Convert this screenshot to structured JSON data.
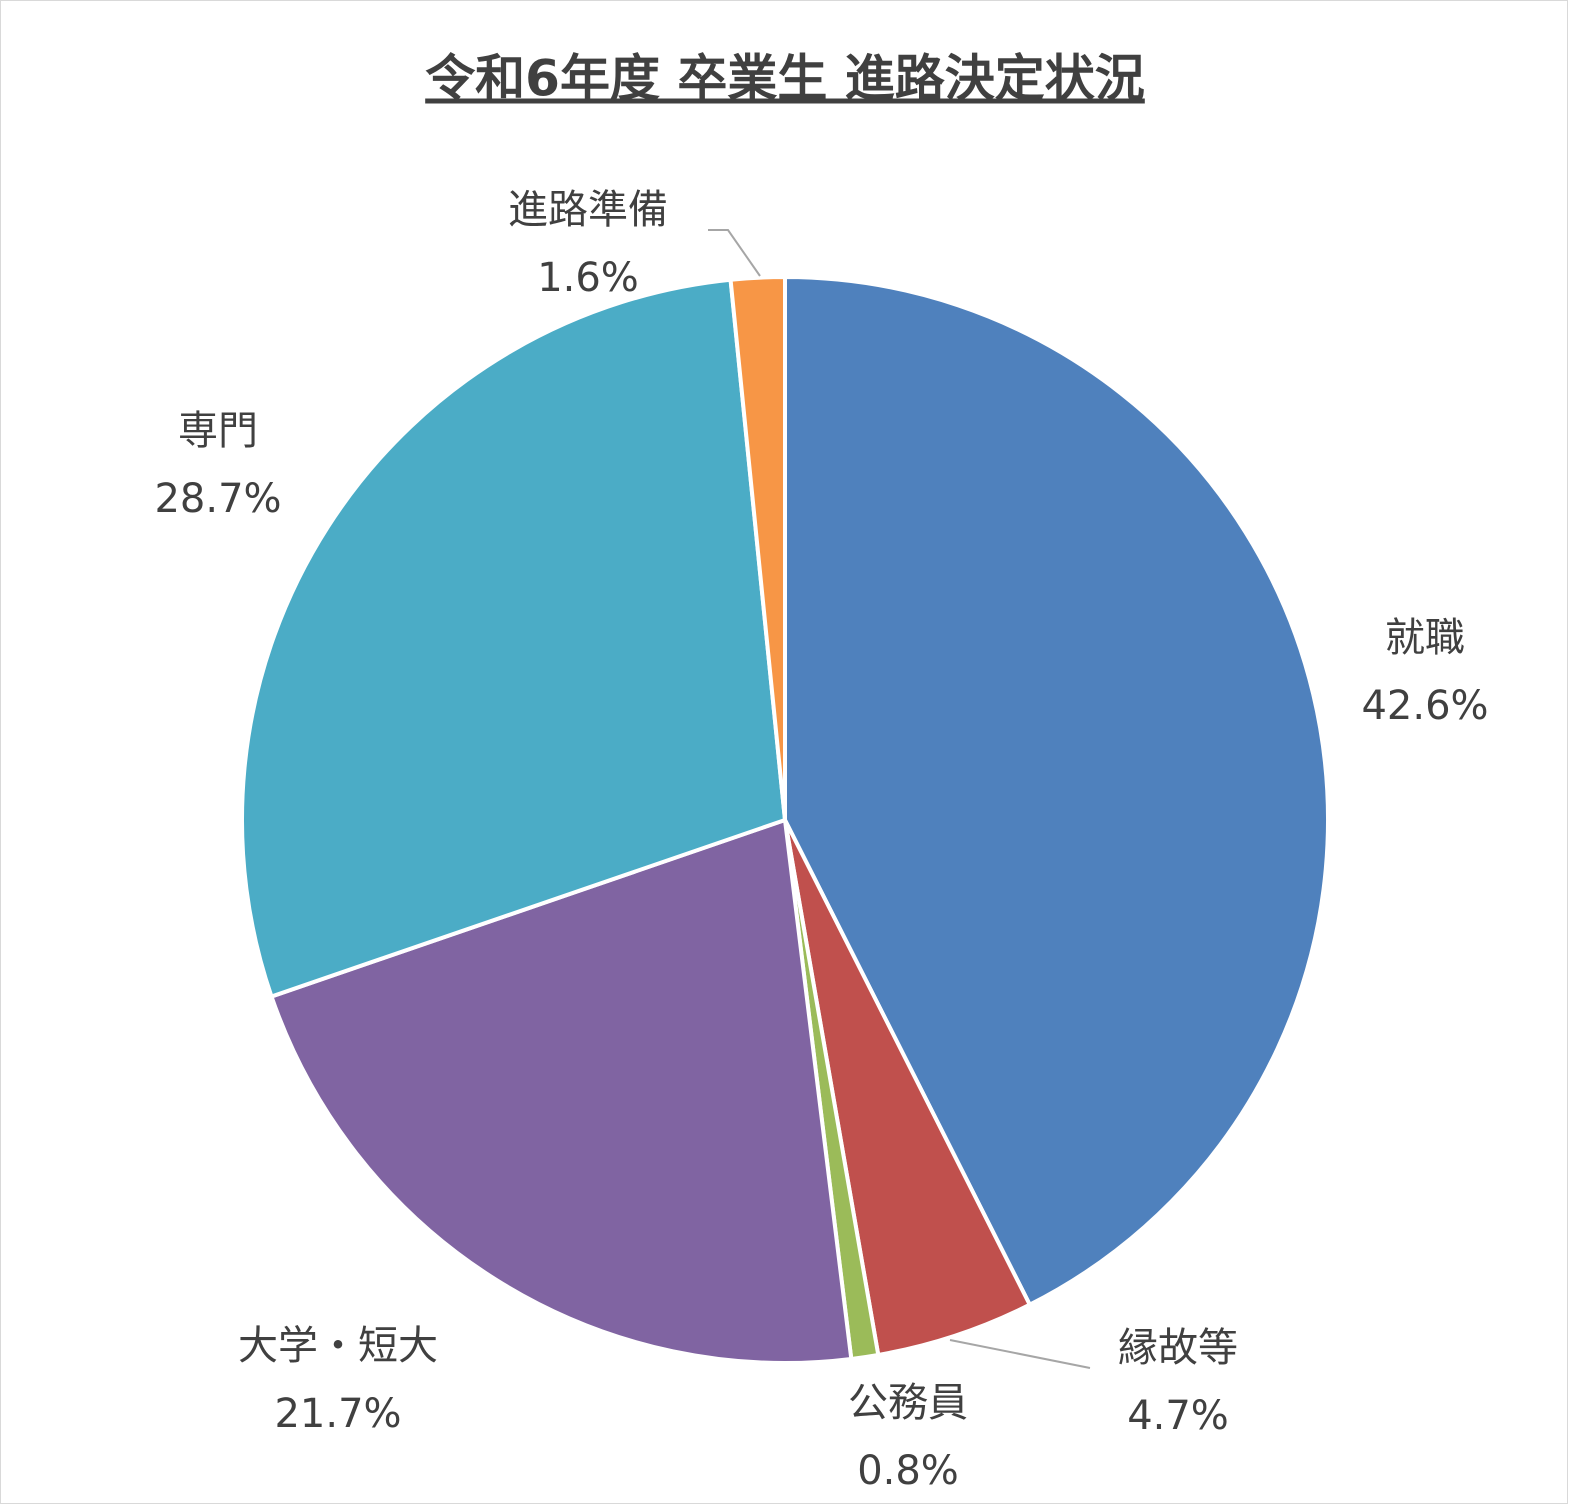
{
  "chart_data": {
    "type": "pie",
    "title": "令和6年度 卒業生 進路決定状況",
    "categories": [
      "就職",
      "縁故等",
      "公務員",
      "大学・短大",
      "専門",
      "進路準備"
    ],
    "values": [
      42.6,
      4.7,
      0.8,
      21.7,
      28.7,
      1.6
    ],
    "value_labels": [
      "42.6%",
      "4.7%",
      "0.8%",
      "21.7%",
      "28.7%",
      "1.6%"
    ],
    "colors": [
      "#4f81bd",
      "#c0504d",
      "#9bbb59",
      "#8064a2",
      "#4bacc6",
      "#f79646"
    ]
  }
}
